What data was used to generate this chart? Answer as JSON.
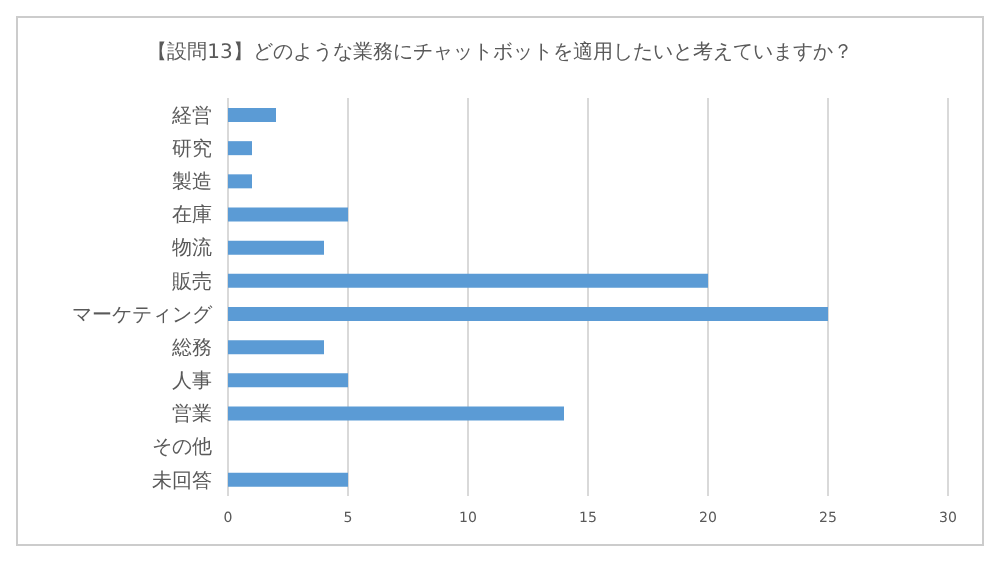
{
  "chart_data": {
    "type": "bar",
    "orientation": "horizontal",
    "title": "【設問13】どのような業務にチャットボットを適用したいと考えていますか？",
    "categories": [
      "経営",
      "研究",
      "製造",
      "在庫",
      "物流",
      "販売",
      "マーケティング",
      "総務",
      "人事",
      "営業",
      "その他",
      "未回答"
    ],
    "values": [
      2,
      1,
      1,
      5,
      4,
      20,
      25,
      4,
      5,
      14,
      0,
      5
    ],
    "color": "#5b9bd5",
    "xlim": [
      0,
      30
    ],
    "xticks": [
      0,
      5,
      10,
      15,
      20,
      25,
      30
    ],
    "grid": "x"
  }
}
